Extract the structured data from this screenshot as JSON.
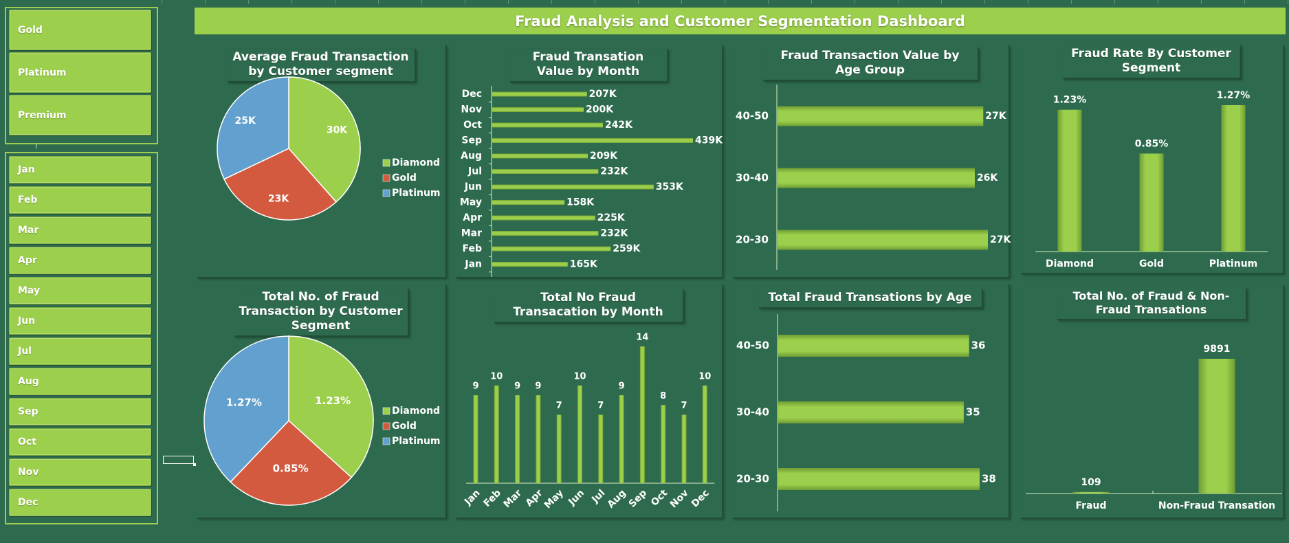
{
  "dashboard": {
    "title": "Fraud Analysis and Customer Segmentation Dashboard"
  },
  "colors": {
    "accent": "#9ccf4c",
    "background": "#2e6b4e",
    "diamond": "#9ccf4c",
    "gold": "#d35a3e",
    "platinum": "#62a0cf"
  },
  "segment_slicer": {
    "items": [
      "Gold",
      "Platinum",
      "Premium"
    ]
  },
  "month_slicer": {
    "items": [
      "Jan",
      "Feb",
      "Mar",
      "Apr",
      "May",
      "Jun",
      "Jul",
      "Aug",
      "Sep",
      "Oct",
      "Nov",
      "Dec"
    ]
  },
  "chart_data": [
    {
      "id": "avg-fraud-pie",
      "type": "pie",
      "title": "Average Fraud Transaction by Customer segment",
      "categories": [
        "Diamond",
        "Gold",
        "Platinum"
      ],
      "values": [
        30,
        23,
        25
      ],
      "labels": [
        "30K",
        "23K",
        "25K"
      ],
      "legend": "right"
    },
    {
      "id": "fraud-value-month",
      "type": "bar",
      "title": "Fraud Transation Value by Month",
      "categories": [
        "Dec",
        "Nov",
        "Oct",
        "Sep",
        "Aug",
        "Jul",
        "Jun",
        "May",
        "Apr",
        "Mar",
        "Feb",
        "Jan"
      ],
      "values": [
        207,
        200,
        242,
        439,
        209,
        232,
        353,
        158,
        225,
        232,
        259,
        165
      ],
      "labels": [
        "207K",
        "200K",
        "242K",
        "439K",
        "209K",
        "232K",
        "353K",
        "158K",
        "225K",
        "232K",
        "259K",
        "165K"
      ],
      "orientation": "horizontal"
    },
    {
      "id": "fraud-value-age",
      "type": "bar",
      "title": "Fraud Transaction Value by Age Group",
      "categories": [
        "40-50",
        "30-40",
        "20-30"
      ],
      "values": [
        26.7,
        25.6,
        27.3
      ],
      "labels": [
        "27K",
        "26K",
        "27K"
      ],
      "orientation": "horizontal"
    },
    {
      "id": "fraud-rate-segment",
      "type": "bar",
      "title": "Fraud  Rate By Customer Segment",
      "categories": [
        "Diamond",
        "Gold",
        "Platinum"
      ],
      "values": [
        1.23,
        0.85,
        1.27
      ],
      "labels": [
        "1.23%",
        "0.85%",
        "1.27%"
      ],
      "orientation": "vertical"
    },
    {
      "id": "total-fraud-pie",
      "type": "pie",
      "title": "Total No. of Fraud Transaction by Customer Segment",
      "categories": [
        "Diamond",
        "Gold",
        "Platinum"
      ],
      "values": [
        1.23,
        0.85,
        1.27
      ],
      "labels": [
        "1.23%",
        "0.85%",
        "1.27%"
      ],
      "legend": "right"
    },
    {
      "id": "fraud-count-month",
      "type": "bar",
      "title": "Total No Fraud Transacation by Month",
      "categories": [
        "Jan",
        "Feb",
        "Mar",
        "Apr",
        "May",
        "Jun",
        "Jul",
        "Aug",
        "Sep",
        "Oct",
        "Nov",
        "Dec"
      ],
      "values": [
        9,
        10,
        9,
        9,
        7,
        10,
        7,
        9,
        14,
        8,
        7,
        10
      ],
      "labels": [
        "9",
        "10",
        "9",
        "9",
        "7",
        "10",
        "7",
        "9",
        "14",
        "8",
        "7",
        "10"
      ],
      "orientation": "vertical"
    },
    {
      "id": "fraud-count-age",
      "type": "bar",
      "title": "Total Fraud Transations by Age",
      "categories": [
        "40-50",
        "30-40",
        "20-30"
      ],
      "values": [
        36,
        35,
        38
      ],
      "labels": [
        "36",
        "35",
        "38"
      ],
      "orientation": "horizontal"
    },
    {
      "id": "fraud-vs-nonfraud",
      "type": "bar",
      "title": "Total No. of Fraud & Non-Fraud Transations",
      "categories": [
        "Fraud",
        "Non-Fraud Transation"
      ],
      "values": [
        109,
        9891
      ],
      "labels": [
        "109",
        "9891"
      ],
      "orientation": "vertical"
    }
  ]
}
